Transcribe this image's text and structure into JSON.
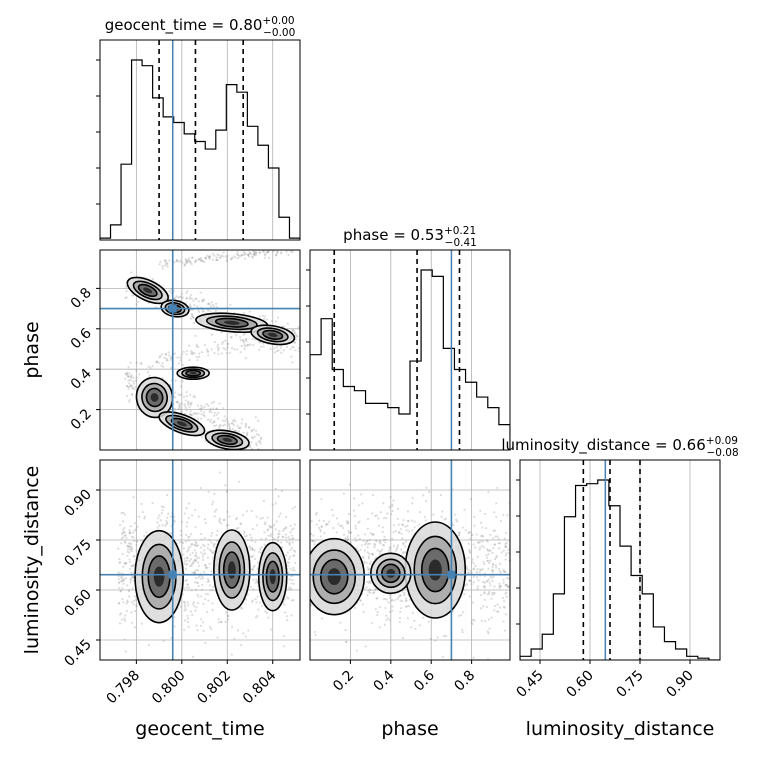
{
  "colors": {
    "truth": "#4682b4",
    "hist": "#000000",
    "grid": "#b0b0b0",
    "scatter": "#9a9a9a"
  },
  "chart_data": {
    "type": "corner",
    "parameters": [
      "geocent_time",
      "phase",
      "luminosity_distance"
    ],
    "truths": {
      "geocent_time": 0.7996,
      "phase": 0.7,
      "luminosity_distance": 0.646
    },
    "ranges": {
      "geocent_time": [
        0.7964,
        0.8052
      ],
      "phase": [
        0.0,
        0.99
      ],
      "luminosity_distance": [
        0.39,
        0.99
      ]
    },
    "ticks": {
      "geocent_time": {
        "values": [
          0.798,
          0.8,
          0.802,
          0.804
        ],
        "labels": [
          "0.798",
          "0.800",
          "0.802",
          "0.804"
        ]
      },
      "phase": {
        "values": [
          0.2,
          0.4,
          0.6,
          0.8
        ],
        "labels": [
          "0.2",
          "0.4",
          "0.6",
          "0.8"
        ]
      },
      "luminosity_distance": {
        "values": [
          0.45,
          0.6,
          0.75,
          0.9
        ],
        "labels": [
          "0.45",
          "0.60",
          "0.75",
          "0.90"
        ]
      }
    },
    "axis_labels": {
      "geocent_time": "geocent_time",
      "phase": "phase",
      "luminosity_distance": "luminosity_distance"
    },
    "titles": [
      {
        "param": "geocent_time",
        "text": "geocent_time = 0.80",
        "sup": "+0.00",
        "sub": "−0.00"
      },
      {
        "param": "phase",
        "text": "phase = 0.53",
        "sup": "+0.21",
        "sub": "−0.41"
      },
      {
        "param": "luminosity_distance",
        "text": "luminosity_distance = 0.66",
        "sup": "+0.09",
        "sub": "−0.08"
      }
    ],
    "quantiles": {
      "geocent_time": [
        0.799,
        0.8006,
        0.8027
      ],
      "phase": [
        0.12,
        0.53,
        0.74
      ],
      "luminosity_distance": [
        0.58,
        0.66,
        0.75
      ]
    },
    "histograms": {
      "geocent_time": [
        1,
        8,
        40,
        95,
        92,
        75,
        65,
        62,
        56,
        52,
        48,
        58,
        82,
        78,
        60,
        50,
        38,
        12,
        1
      ],
      "phase": [
        45,
        62,
        38,
        30,
        28,
        22,
        22,
        20,
        17,
        42,
        85,
        82,
        48,
        38,
        32,
        25,
        20,
        12
      ],
      "luminosity_distance": [
        2,
        6,
        14,
        36,
        78,
        95,
        96,
        98,
        84,
        62,
        46,
        36,
        18,
        10,
        6,
        2,
        1,
        0
      ]
    },
    "grid": true
  }
}
